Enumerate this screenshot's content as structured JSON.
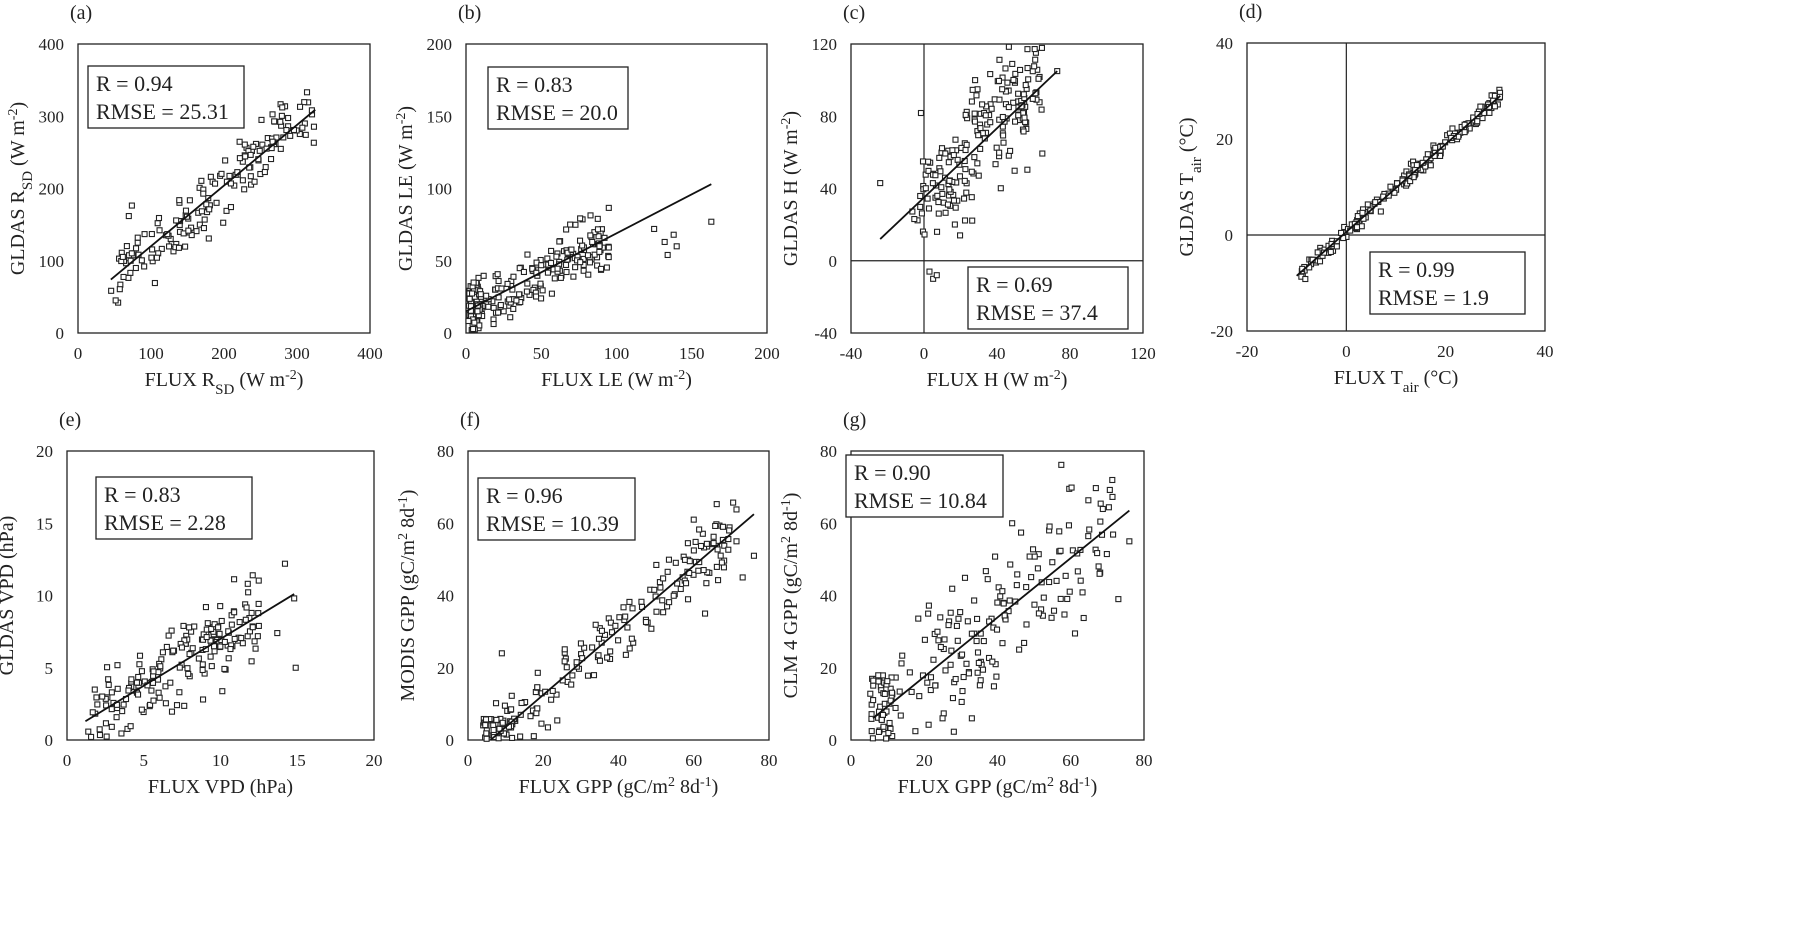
{
  "chart_data": [
    {
      "type": "scatter",
      "panel": "(a)",
      "xlabel": {
        "main": "FLUX R",
        "sub": "SD",
        "unit": " (W m",
        "sup": "-2",
        "end": ")"
      },
      "ylabel": {
        "main": "GLDAS R",
        "sub": "SD",
        "unit": " (W m",
        "sup": "-2",
        "end": ")"
      },
      "xlim": [
        0,
        400
      ],
      "ylim": [
        0,
        400
      ],
      "xticks": [
        0,
        100,
        200,
        300,
        400
      ],
      "yticks": [
        0,
        100,
        200,
        300,
        400
      ],
      "zero_lines": false,
      "stats": {
        "r": "R = 0.94",
        "rmse": "RMSE = 25.31"
      },
      "fit": {
        "x": [
          45,
          325
        ],
        "y": [
          74,
          309
        ]
      },
      "cloud": {
        "n": 170,
        "xmin": 45,
        "xmax": 325,
        "noise": 22,
        "seed": 11
      }
    },
    {
      "type": "scatter",
      "panel": "(b)",
      "xlabel": {
        "main": "FLUX LE (W m",
        "sup": "-2",
        "end": ")"
      },
      "ylabel": {
        "main": "GLDAS LE (W m",
        "sup": "-2",
        "end": ")"
      },
      "xlim": [
        0,
        200
      ],
      "ylim": [
        0,
        200
      ],
      "xticks": [
        0,
        50,
        100,
        150,
        200
      ],
      "yticks": [
        0,
        50,
        100,
        150,
        200
      ],
      "zero_lines": false,
      "stats": {
        "r": "R =  0.83",
        "rmse": "RMSE = 20.0"
      },
      "fit": {
        "x": [
          0,
          163
        ],
        "y": [
          15,
          103
        ]
      },
      "cloud": {
        "n": 180,
        "xmin": 0,
        "xmax": 95,
        "noise": 9,
        "seed": 23,
        "cluster": {
          "x": [
            0,
            10
          ],
          "y": [
            2,
            35
          ],
          "n": 70
        }
      },
      "extra_points": [
        [
          125,
          72
        ],
        [
          132,
          63
        ],
        [
          138,
          68
        ],
        [
          140,
          60
        ],
        [
          163,
          77
        ],
        [
          134,
          54
        ]
      ]
    },
    {
      "type": "scatter",
      "panel": "(c)",
      "xlabel": {
        "main": "FLUX H (W m",
        "sup": "-2",
        "end": ")"
      },
      "ylabel": {
        "main": "GLDAS H (W m",
        "sup": "-2",
        "end": ")"
      },
      "xlim": [
        -40,
        120
      ],
      "ylim": [
        -40,
        120
      ],
      "xticks": [
        -40,
        0,
        40,
        80,
        120
      ],
      "yticks": [
        -40,
        0,
        40,
        80,
        120
      ],
      "zero_lines": true,
      "stats": {
        "r": "R = 0.69",
        "rmse": "RMSE = 37.4"
      },
      "fit": {
        "x": [
          -24,
          73
        ],
        "y": [
          12,
          105
        ]
      },
      "cloud": {
        "n": 200,
        "xmin": -8,
        "xmax": 65,
        "noise": 16,
        "seed": 37
      },
      "extra_points": [
        [
          -24,
          43
        ],
        [
          3,
          -6
        ],
        [
          5,
          -10
        ],
        [
          7,
          -8
        ],
        [
          73,
          105
        ],
        [
          28,
          100
        ]
      ]
    },
    {
      "type": "scatter",
      "panel": "(d)",
      "xlabel": {
        "main": "FLUX T",
        "sub": "air",
        "unit": " (°C)"
      },
      "ylabel": {
        "main": "GLDAS T",
        "sub": "air",
        "unit": " (°C)"
      },
      "xlim": [
        -20,
        40
      ],
      "ylim": [
        -20,
        40
      ],
      "xticks": [
        -20,
        0,
        20,
        40
      ],
      "yticks": [
        -20,
        0,
        20,
        40
      ],
      "zero_lines": true,
      "stats": {
        "r": "R = 0.99",
        "rmse": "RMSE = 1.9"
      },
      "fit": {
        "x": [
          -10,
          31
        ],
        "y": [
          -8.5,
          29
        ]
      },
      "cloud": {
        "n": 200,
        "xmin": -10,
        "xmax": 31,
        "noise": 0.9,
        "seed": 41
      }
    },
    {
      "type": "scatter",
      "panel": "(e)",
      "xlabel": {
        "main": "FLUX VPD (hPa)"
      },
      "ylabel": {
        "main": "GLDAS VPD (hPa)"
      },
      "xlim": [
        0,
        20
      ],
      "ylim": [
        0,
        20
      ],
      "xticks": [
        0,
        5,
        10,
        15,
        20
      ],
      "yticks": [
        0,
        5,
        10,
        15,
        20
      ],
      "zero_lines": false,
      "stats": {
        "r": "R = 0.83",
        "rmse": "RMSE = 2.28"
      },
      "fit": {
        "x": [
          1.2,
          14.8
        ],
        "y": [
          1.3,
          10.1
        ]
      },
      "cloud": {
        "n": 190,
        "xmin": 1.2,
        "xmax": 12.5,
        "noise": 1.3,
        "seed": 53
      },
      "extra_points": [
        [
          14.2,
          12.2
        ],
        [
          14.8,
          9.8
        ],
        [
          14.9,
          5.0
        ],
        [
          13.7,
          7.4
        ],
        [
          12.1,
          11.4
        ]
      ]
    },
    {
      "type": "scatter",
      "panel": "(f)",
      "xlabel": {
        "main": "FLUX GPP (gC/m",
        "sup": "2",
        "end": " 8d",
        "sup2": "-1",
        "end2": ")"
      },
      "ylabel": {
        "main": "MODIS GPP (gC/m",
        "sup": "2",
        "end": " 8d",
        "sup2": "-1",
        "end2": ")"
      },
      "xlim": [
        0,
        80
      ],
      "ylim": [
        0,
        80
      ],
      "xticks": [
        0,
        20,
        40,
        60,
        80
      ],
      "yticks": [
        0,
        20,
        40,
        60,
        80
      ],
      "zero_lines": false,
      "stats": {
        "r": "R = 0.96",
        "rmse": "RMSE = 10.39"
      },
      "fit": {
        "x": [
          6,
          76
        ],
        "y": [
          0,
          62.5
        ]
      },
      "cloud": {
        "n": 170,
        "xmin": 5,
        "xmax": 72,
        "noise": 4.5,
        "seed": 67,
        "cluster": {
          "x": [
            4,
            12
          ],
          "y": [
            0,
            6
          ],
          "n": 45
        }
      },
      "extra_points": [
        [
          9,
          24
        ],
        [
          76,
          51
        ],
        [
          73,
          45
        ],
        [
          60,
          61
        ],
        [
          63,
          35
        ]
      ]
    },
    {
      "type": "scatter",
      "panel": "(g)",
      "xlabel": {
        "main": "FLUX GPP (gC/m",
        "sup": "2",
        "end": " 8d",
        "sup2": "-1",
        "end2": ")"
      },
      "ylabel": {
        "main": "CLM 4 GPP (gC/m",
        "sup": "2",
        "end": " 8d",
        "sup2": "-1",
        "end2": ")"
      },
      "xlim": [
        0,
        80
      ],
      "ylim": [
        0,
        80
      ],
      "xticks": [
        0,
        20,
        40,
        60,
        80
      ],
      "yticks": [
        0,
        20,
        40,
        60,
        80
      ],
      "zero_lines": false,
      "stats": {
        "r": "R = 0.90",
        "rmse": "RMSE = 10.84"
      },
      "fit": {
        "x": [
          6,
          76
        ],
        "y": [
          6,
          63.5
        ]
      },
      "cloud": {
        "n": 170,
        "xmin": 5,
        "xmax": 72,
        "noise": 9,
        "seed": 79,
        "cluster": {
          "x": [
            5,
            12
          ],
          "y": [
            0,
            18
          ],
          "n": 45
        }
      },
      "extra_points": [
        [
          76,
          55
        ],
        [
          73,
          39
        ],
        [
          33,
          6
        ],
        [
          25,
          6
        ],
        [
          44,
          60
        ]
      ]
    }
  ]
}
